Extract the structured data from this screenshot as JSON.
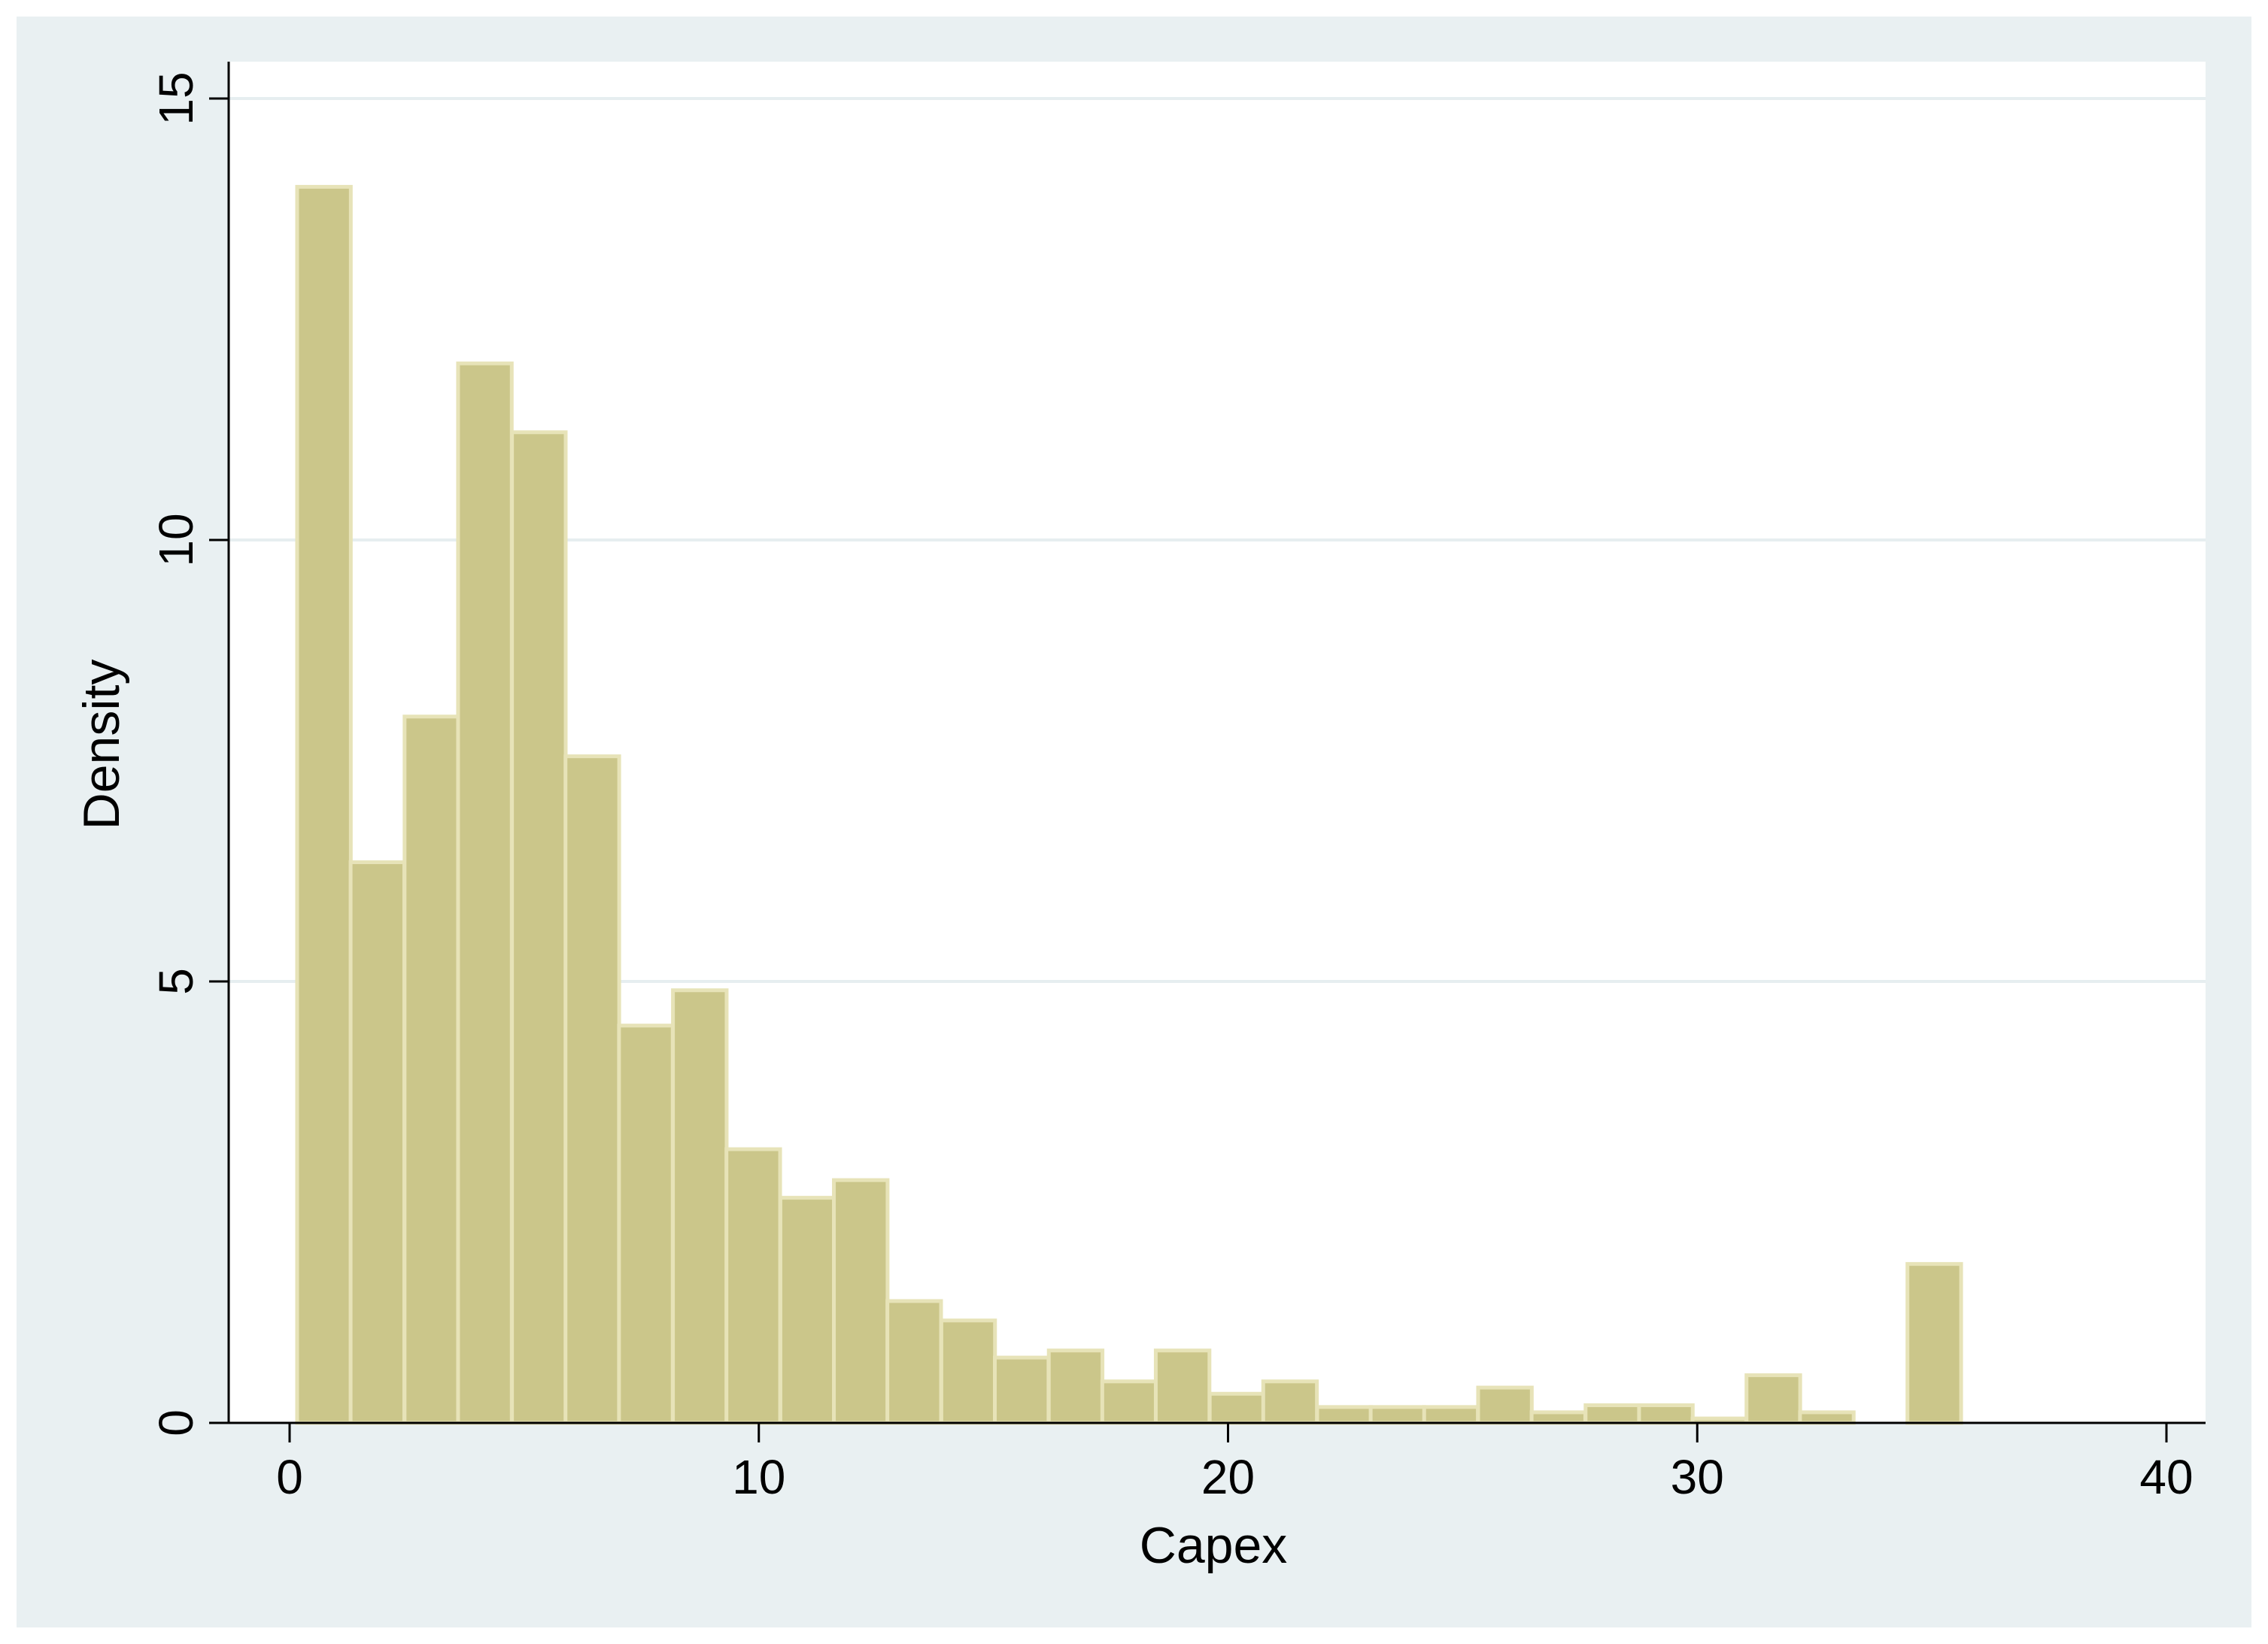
{
  "chart_data": {
    "type": "bar",
    "xlabel": "Capex",
    "ylabel": "Density",
    "xlim": [
      0,
      40
    ],
    "ylim": [
      0,
      15
    ],
    "xticks": [
      0,
      10,
      20,
      30,
      40
    ],
    "yticks": [
      0,
      5,
      10,
      15
    ],
    "xtick_labels": [
      "0",
      "10",
      "20",
      "30",
      "40"
    ],
    "ytick_labels": [
      "0",
      "5",
      "10",
      "15"
    ],
    "grid": "horizontal",
    "bin_width": 1.144,
    "bins": [
      {
        "start": 0.16,
        "value": 14.0
      },
      {
        "start": 1.3,
        "value": 6.35
      },
      {
        "start": 2.45,
        "value": 8.0
      },
      {
        "start": 3.59,
        "value": 12.0
      },
      {
        "start": 4.74,
        "value": 11.22
      },
      {
        "start": 5.88,
        "value": 7.55
      },
      {
        "start": 7.02,
        "value": 4.5
      },
      {
        "start": 8.17,
        "value": 4.9
      },
      {
        "start": 9.31,
        "value": 3.1
      },
      {
        "start": 10.46,
        "value": 2.55
      },
      {
        "start": 11.6,
        "value": 2.75
      },
      {
        "start": 12.74,
        "value": 1.38
      },
      {
        "start": 13.89,
        "value": 1.16
      },
      {
        "start": 15.03,
        "value": 0.74
      },
      {
        "start": 16.18,
        "value": 0.82
      },
      {
        "start": 17.32,
        "value": 0.47
      },
      {
        "start": 18.46,
        "value": 0.82
      },
      {
        "start": 19.61,
        "value": 0.33
      },
      {
        "start": 20.75,
        "value": 0.47
      },
      {
        "start": 21.9,
        "value": 0.18
      },
      {
        "start": 23.04,
        "value": 0.18
      },
      {
        "start": 24.18,
        "value": 0.18
      },
      {
        "start": 25.33,
        "value": 0.4
      },
      {
        "start": 26.47,
        "value": 0.12
      },
      {
        "start": 27.62,
        "value": 0.2
      },
      {
        "start": 28.76,
        "value": 0.2
      },
      {
        "start": 29.9,
        "value": 0.05
      },
      {
        "start": 31.05,
        "value": 0.54
      },
      {
        "start": 32.19,
        "value": 0.12
      },
      {
        "start": 33.34,
        "value": 0.0
      },
      {
        "start": 34.48,
        "value": 1.8
      }
    ],
    "colors": {
      "bar_fill": "#cbc68a",
      "bar_stroke": "#e7e3b8",
      "outer_background": "#e9f0f2",
      "plot_background": "#ffffff",
      "gridline": "#e6eef0",
      "axis": "#000000"
    }
  }
}
